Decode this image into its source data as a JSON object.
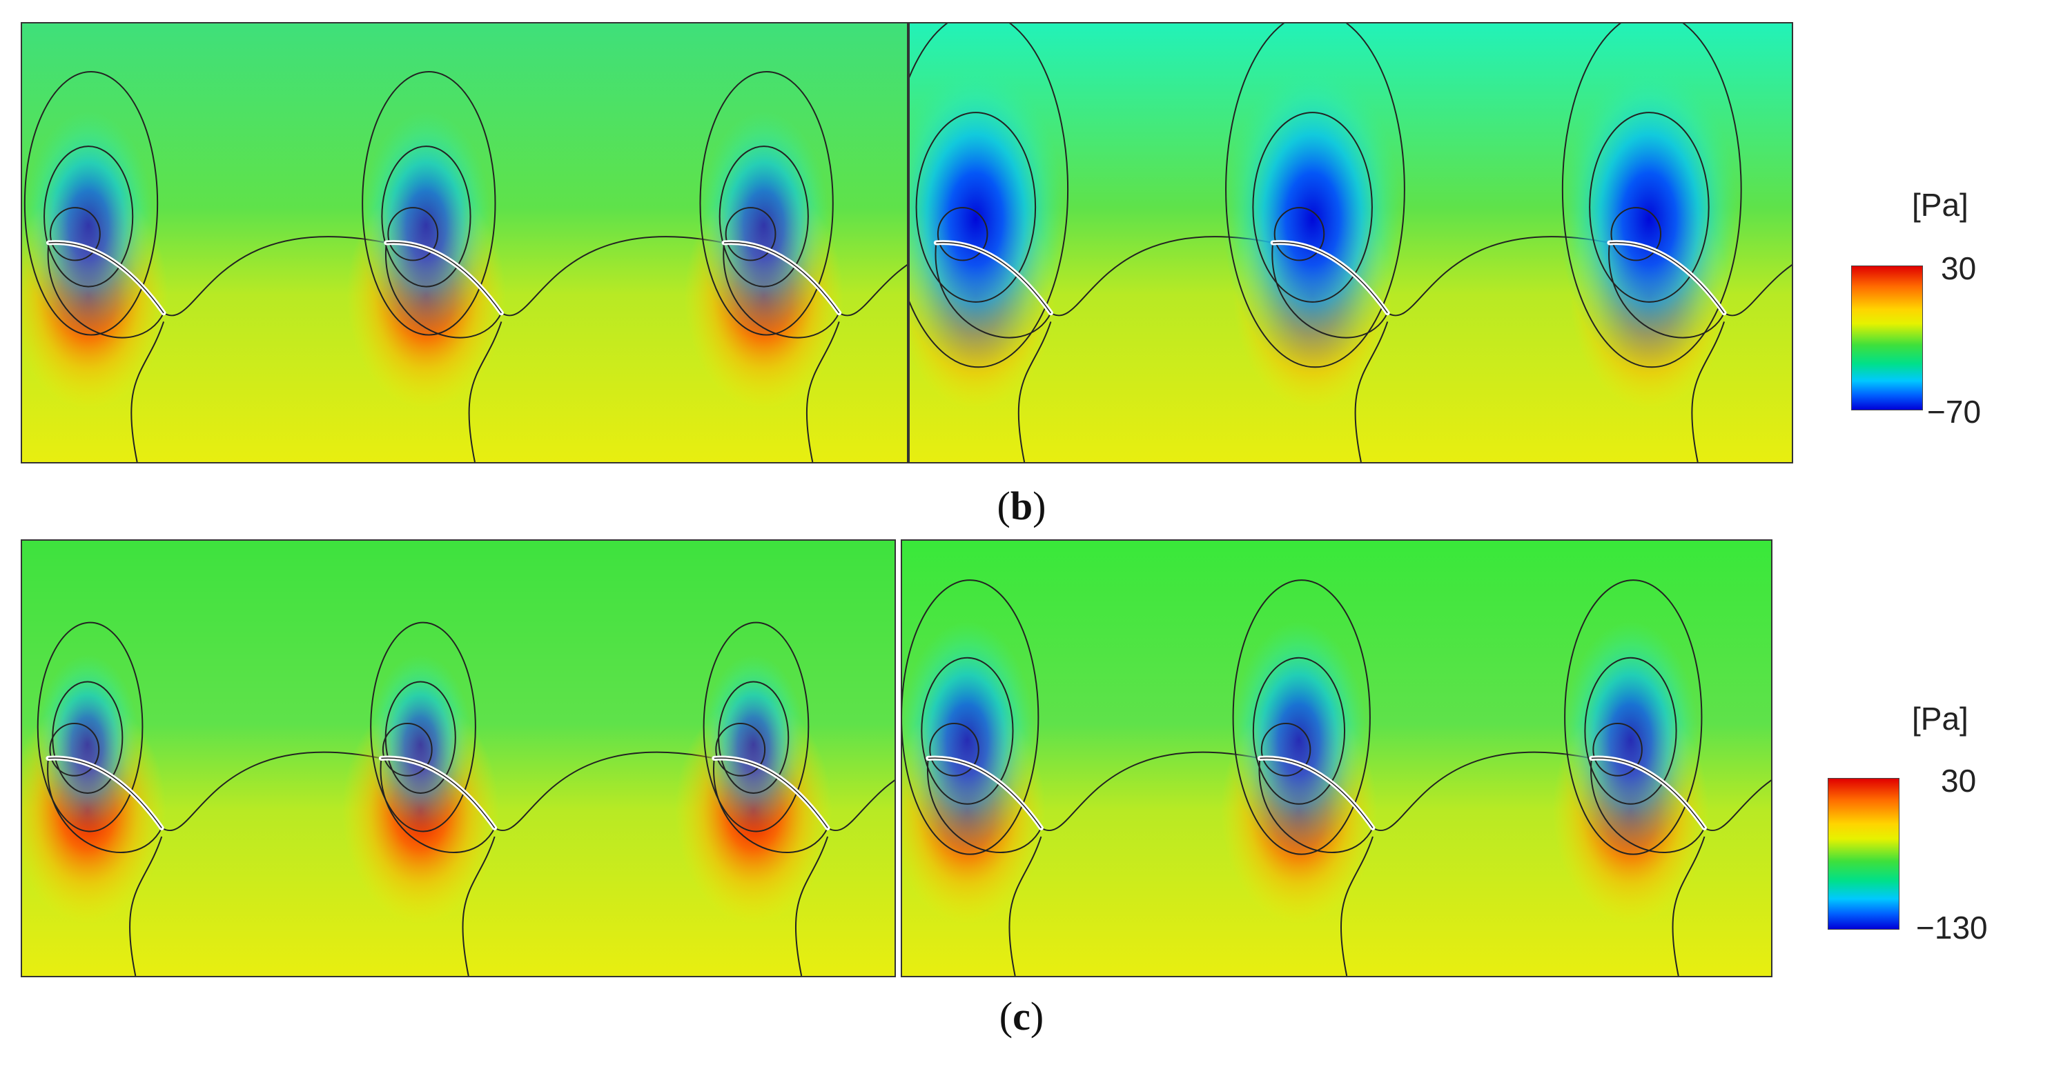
{
  "rows": [
    {
      "caption_letter": "b",
      "colorbar": {
        "unit": "[Pa]",
        "max_label": "30",
        "min_label": "−70"
      },
      "panels": [
        {
          "low_strength": 0.55,
          "low_reach": 1.0,
          "top_color": "#3fe07a"
        },
        {
          "low_strength": 1.0,
          "low_reach": 1.35,
          "top_color": "#22f2b8"
        }
      ]
    },
    {
      "caption_letter": "c",
      "colorbar": {
        "unit": "[Pa]",
        "max_label": "30",
        "min_label": "−130"
      },
      "panels": [
        {
          "low_strength": 0.45,
          "low_reach": 0.8,
          "top_color": "#3ee23e"
        },
        {
          "low_strength": 0.65,
          "low_reach": 1.05,
          "top_color": "#39e83a"
        }
      ]
    }
  ]
}
